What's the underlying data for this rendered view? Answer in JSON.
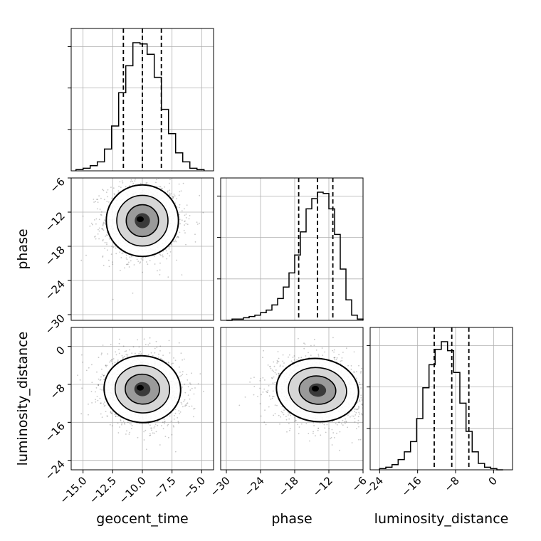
{
  "chart_data": {
    "type": "corner",
    "parameters": [
      "geocent_time",
      "phase",
      "luminosity_distance"
    ],
    "axis_labels": {
      "geocent_time": "geocent_time",
      "phase": "phase",
      "luminosity_distance": "luminosity_distance"
    },
    "ranges": {
      "geocent_time": [
        -16.0,
        -4.0
      ],
      "phase": [
        -31.0,
        -6.0
      ],
      "luminosity_distance": [
        -26.0,
        4.0
      ]
    },
    "ticks": {
      "geocent_time": [
        -15.0,
        -12.5,
        -10.0,
        -7.5,
        -5.0
      ],
      "phase": [
        -30,
        -24,
        -18,
        -12,
        -6
      ],
      "luminosity_distance": [
        -24,
        -16,
        -8,
        0
      ]
    },
    "tick_labels": {
      "geocent_time": [
        "−15.0",
        "−12.5",
        "−10.0",
        "−7.5",
        "−5.0"
      ],
      "phase": [
        "−30",
        "−24",
        "−18",
        "−12",
        "−6"
      ],
      "luminosity_distance": [
        "−24",
        "−16",
        "−8",
        "0"
      ]
    },
    "quantiles": {
      "geocent_time": [
        -11.6,
        -10.0,
        -8.4
      ],
      "phase": [
        -17.3,
        -14.0,
        -11.3
      ],
      "luminosity_distance": [
        -12.5,
        -8.8,
        -5.2
      ]
    },
    "histograms": {
      "geocent_time": {
        "edges": [
          -15.6,
          -15.0,
          -14.4,
          -13.8,
          -13.2,
          -12.6,
          -12.0,
          -11.4,
          -10.8,
          -10.2,
          -9.6,
          -9.0,
          -8.4,
          -7.8,
          -7.2,
          -6.6,
          -6.0,
          -5.4,
          -4.8
        ],
        "counts": [
          0.01,
          0.02,
          0.04,
          0.07,
          0.17,
          0.35,
          0.61,
          0.82,
          1.0,
          0.99,
          0.91,
          0.73,
          0.48,
          0.29,
          0.14,
          0.07,
          0.02,
          0.01
        ]
      },
      "phase": {
        "edges": [
          -30,
          -29,
          -28,
          -27,
          -26,
          -25,
          -24,
          -23,
          -22,
          -21,
          -20,
          -19,
          -18,
          -17,
          -16,
          -15,
          -14,
          -13,
          -12,
          -11,
          -10,
          -9,
          -8,
          -7,
          -6
        ],
        "counts": [
          0.0,
          0.01,
          0.01,
          0.02,
          0.03,
          0.04,
          0.06,
          0.08,
          0.12,
          0.17,
          0.26,
          0.37,
          0.51,
          0.69,
          0.87,
          0.95,
          1.0,
          0.99,
          0.87,
          0.67,
          0.4,
          0.16,
          0.04,
          0.01
        ]
      },
      "luminosity_distance": {
        "edges": [
          -24,
          -22.7,
          -21.4,
          -20.1,
          -18.8,
          -17.5,
          -16.2,
          -14.9,
          -13.6,
          -12.3,
          -11.0,
          -9.7,
          -8.4,
          -7.1,
          -5.8,
          -4.5,
          -3.2,
          -1.9,
          -0.6,
          0.7,
          2.0
        ],
        "counts": [
          0.01,
          0.02,
          0.04,
          0.08,
          0.14,
          0.22,
          0.4,
          0.64,
          0.82,
          0.94,
          1.0,
          0.93,
          0.76,
          0.52,
          0.3,
          0.14,
          0.05,
          0.02,
          0.01,
          0.0
        ]
      }
    },
    "joint": {
      "phase_vs_geocent_time": {
        "x": "geocent_time",
        "y": "phase",
        "mean": [
          -10.0,
          -13.5
        ],
        "std": [
          1.6,
          3.3
        ],
        "corr": 0.0
      },
      "luminosity_distance_vs_geocent_time": {
        "x": "geocent_time",
        "y": "luminosity_distance",
        "mean": [
          -10.0,
          -9.0
        ],
        "std": [
          1.7,
          3.7
        ],
        "corr": -0.1
      },
      "luminosity_distance_vs_phase": {
        "x": "phase",
        "y": "luminosity_distance",
        "mean": [
          -14.0,
          -9.2
        ],
        "std": [
          3.8,
          3.5
        ],
        "corr": -0.15
      }
    },
    "grid": true,
    "colors": {
      "line": "#000000",
      "grid": "#b0b0b0",
      "points": "#000000"
    }
  }
}
